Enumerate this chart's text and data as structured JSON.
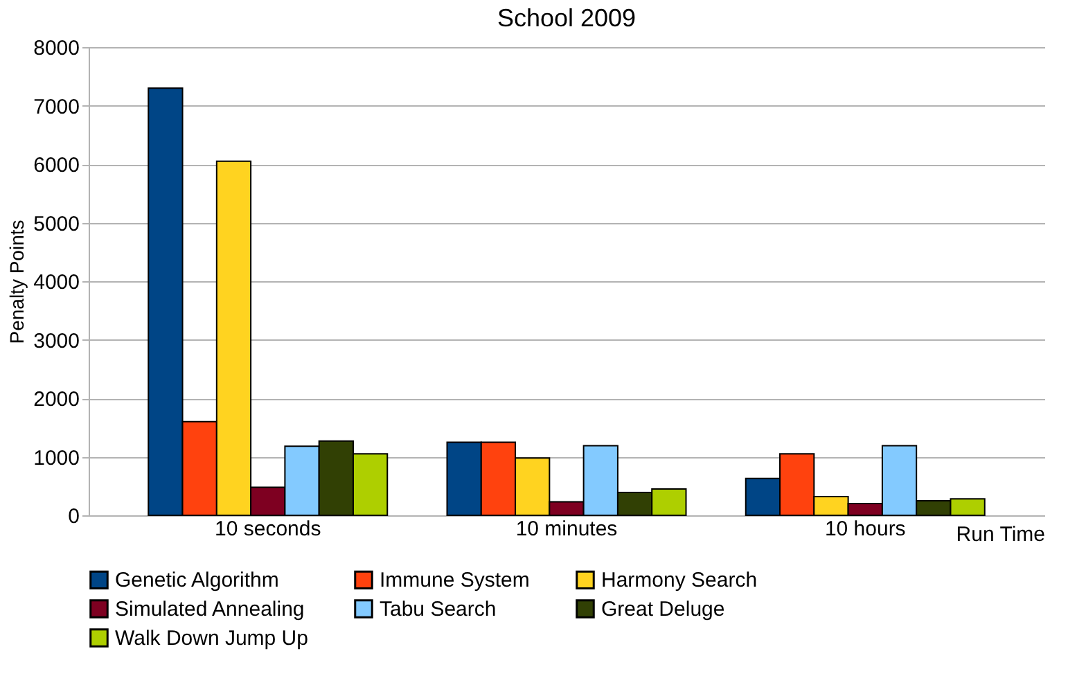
{
  "chart_data": {
    "type": "bar",
    "title": "School 2009",
    "xlabel": "Run Time",
    "ylabel": "Penalty Points",
    "categories": [
      "10 seconds",
      "10 minutes",
      "10 hours"
    ],
    "series": [
      {
        "name": "Genetic Algorithm",
        "color": "#004586",
        "values": [
          7300,
          1250,
          630
        ]
      },
      {
        "name": "Immune System",
        "color": "#ff420e",
        "values": [
          1600,
          1250,
          1050
        ]
      },
      {
        "name": "Harmony Search",
        "color": "#ffd320",
        "values": [
          6050,
          980,
          320
        ]
      },
      {
        "name": "Simulated Annealing",
        "color": "#7e0021",
        "values": [
          480,
          230,
          200
        ]
      },
      {
        "name": "Tabu Search",
        "color": "#83caff",
        "values": [
          1180,
          1190,
          1190
        ]
      },
      {
        "name": "Great Deluge",
        "color": "#314004",
        "values": [
          1270,
          390,
          250
        ]
      },
      {
        "name": "Walk Down Jump Up",
        "color": "#aecf00",
        "values": [
          1050,
          450,
          280
        ]
      }
    ],
    "ylim": [
      0,
      8000
    ],
    "yticks": [
      0,
      1000,
      2000,
      3000,
      4000,
      5000,
      6000,
      7000,
      8000
    ],
    "grid": "y",
    "legend": "bottom"
  }
}
